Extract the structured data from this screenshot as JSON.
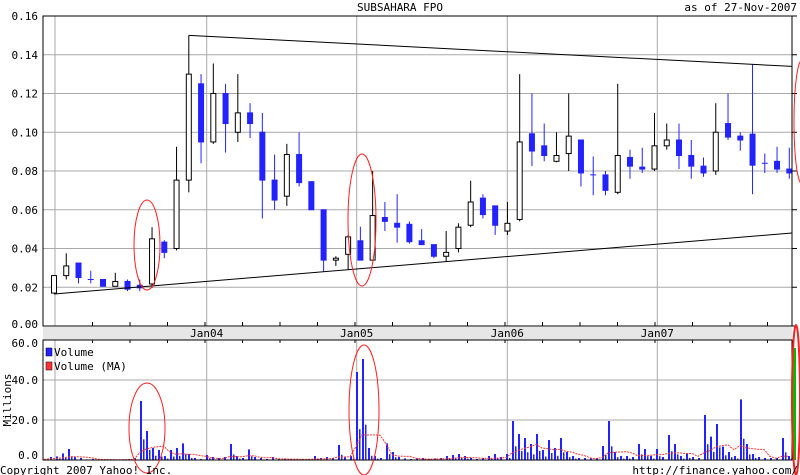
{
  "header": {
    "title": "SUBSAHARA FPO",
    "as_of": "as of 27-Nov-2007"
  },
  "footer": {
    "copyright": "Copyright 2007 Yahoo! Inc.",
    "url": "http://finance.yahoo.com/"
  },
  "colors": {
    "down_candle": "#2323ff",
    "up_candle": "#ffffff",
    "volume": "#2323ff",
    "volume_ma": "#ff3333",
    "annotation": "#ff2020",
    "last_volume_marker": "#00bb00",
    "axis_band": "#e6e6e6",
    "grid": "#a9a9a9"
  },
  "chart_data": [
    {
      "type": "candlestick",
      "title": "SUBSAHARA FPO",
      "period": "monthly",
      "first_period": "2002-11",
      "last_period": "2007-11",
      "ylim": [
        0,
        0.16
      ],
      "y_ticks": [
        "0.00",
        "0.02",
        "0.04",
        "0.06",
        "0.08",
        "0.10",
        "0.12",
        "0.14",
        "0.16"
      ],
      "x_ticks": [
        "Jan04",
        "Jan05",
        "Jan06",
        "Jan07"
      ],
      "grid": true,
      "candles_ohlc": [
        [
          0.017,
          0.026,
          0.017,
          0.026
        ],
        [
          0.026,
          0.0375,
          0.024,
          0.031
        ],
        [
          0.0325,
          0.0325,
          0.022,
          0.025
        ],
        [
          0.024,
          0.0285,
          0.022,
          0.024
        ],
        [
          0.024,
          0.024,
          0.0205,
          0.0205
        ],
        [
          0.0205,
          0.0275,
          0.0205,
          0.023
        ],
        [
          0.023,
          0.024,
          0.018,
          0.019
        ],
        [
          0.021,
          0.024,
          0.018,
          0.0197
        ],
        [
          0.0217,
          0.051,
          0.0197,
          0.045
        ],
        [
          0.0433,
          0.0443,
          0.035,
          0.038
        ],
        [
          0.04,
          0.0925,
          0.039,
          0.0753
        ],
        [
          0.0753,
          0.15,
          0.069,
          0.13
        ],
        [
          0.125,
          0.13,
          0.084,
          0.095
        ],
        [
          0.095,
          0.1355,
          0.094,
          0.12
        ],
        [
          0.12,
          0.125,
          0.0895,
          0.1045
        ],
        [
          0.1,
          0.13,
          0.095,
          0.11
        ],
        [
          0.11,
          0.115,
          0.097,
          0.1045
        ],
        [
          0.1,
          0.11,
          0.0555,
          0.0753
        ],
        [
          0.0753,
          0.0885,
          0.06,
          0.065
        ],
        [
          0.067,
          0.094,
          0.062,
          0.0885
        ],
        [
          0.0885,
          0.1,
          0.072,
          0.074
        ],
        [
          0.0745,
          0.0745,
          0.06,
          0.06
        ],
        [
          0.06,
          0.06,
          0.028,
          0.034
        ],
        [
          0.034,
          0.036,
          0.031,
          0.035
        ],
        [
          0.037,
          0.047,
          0.029,
          0.046
        ],
        [
          0.044,
          0.0513,
          0.034,
          0.034
        ],
        [
          0.034,
          0.08,
          0.034,
          0.057
        ],
        [
          0.056,
          0.064,
          0.049,
          0.054
        ],
        [
          0.053,
          0.068,
          0.043,
          0.051
        ],
        [
          0.0525,
          0.054,
          0.0425,
          0.0435
        ],
        [
          0.044,
          0.05,
          0.042,
          0.042
        ],
        [
          0.042,
          0.042,
          0.035,
          0.036
        ],
        [
          0.036,
          0.049,
          0.033,
          0.038
        ],
        [
          0.04,
          0.053,
          0.038,
          0.051
        ],
        [
          0.052,
          0.075,
          0.051,
          0.064
        ],
        [
          0.066,
          0.068,
          0.0555,
          0.0575
        ],
        [
          0.062,
          0.062,
          0.047,
          0.052
        ],
        [
          0.049,
          0.064,
          0.047,
          0.053
        ],
        [
          0.055,
          0.13,
          0.054,
          0.095
        ],
        [
          0.0992,
          0.12,
          0.0825,
          0.0903
        ],
        [
          0.093,
          0.1045,
          0.085,
          0.088
        ],
        [
          0.085,
          0.1,
          0.0845,
          0.088
        ],
        [
          0.089,
          0.12,
          0.08,
          0.098
        ],
        [
          0.096,
          0.096,
          0.072,
          0.079
        ],
        [
          0.078,
          0.0875,
          0.0675,
          0.078
        ],
        [
          0.078,
          0.08,
          0.0675,
          0.07
        ],
        [
          0.069,
          0.125,
          0.068,
          0.088
        ],
        [
          0.087,
          0.091,
          0.076,
          0.0825
        ],
        [
          0.082,
          0.092,
          0.079,
          0.081
        ],
        [
          0.081,
          0.11,
          0.08,
          0.093
        ],
        [
          0.093,
          0.1045,
          0.091,
          0.096
        ],
        [
          0.096,
          0.1045,
          0.081,
          0.088
        ],
        [
          0.088,
          0.096,
          0.076,
          0.0825
        ],
        [
          0.0825,
          0.087,
          0.077,
          0.079
        ],
        [
          0.08,
          0.115,
          0.078,
          0.1
        ],
        [
          0.1045,
          0.12,
          0.096,
          0.0975
        ],
        [
          0.098,
          0.1,
          0.0905,
          0.096
        ],
        [
          0.099,
          0.135,
          0.068,
          0.083
        ],
        [
          0.084,
          0.089,
          0.079,
          0.084
        ],
        [
          0.085,
          0.0925,
          0.079,
          0.081
        ],
        [
          0.081,
          0.092,
          0.076,
          0.079
        ]
      ],
      "trendlines": [
        {
          "from_candle": 12,
          "from_price": 0.15,
          "to_price_at_end": 0.134
        },
        {
          "from_candle": 1,
          "from_price": 0.0165,
          "to_price_at_end": 0.048
        }
      ]
    },
    {
      "type": "bar",
      "ylabel": "Millions",
      "ylim": [
        0,
        60
      ],
      "y_ticks": [
        "0.0",
        "20.0",
        "40.0",
        "60.0"
      ],
      "legend": [
        "Volume",
        "Volume (MA)"
      ],
      "legend_position": "top-left",
      "volume_millions": [
        0.5,
        1.5,
        1.8,
        3.3,
        5.5,
        1.5,
        1,
        0.3,
        0.5,
        0.2,
        0.2,
        0.3,
        0.2,
        0.3,
        0.5,
        1,
        29.5,
        14.5,
        6,
        5,
        2,
        5,
        6,
        8.3,
        3,
        1,
        0.5,
        2.5,
        1.5,
        1,
        1.5,
        8,
        2,
        1,
        5.3,
        1.5,
        1,
        0.5,
        1.5,
        0.5,
        0.8,
        0.5,
        0.3,
        0.5,
        0.5,
        2,
        1,
        1.5,
        1,
        7.5,
        1.5,
        2,
        44,
        50.5,
        6,
        2,
        1,
        8.3,
        4,
        1.5,
        0.8,
        0.5,
        0.8,
        1,
        0.5,
        0.8,
        1,
        2,
        2.5,
        3,
        2,
        1,
        0.5,
        1,
        2,
        3,
        1.5,
        3,
        19.5,
        13,
        11,
        8,
        13,
        5,
        10,
        6,
        11,
        4,
        2,
        1,
        1,
        0.8,
        1,
        7,
        19.5,
        4,
        2,
        2,
        1.5,
        8,
        5.5,
        2,
        5.5,
        1.5,
        12.5,
        8,
        2,
        3,
        1.5,
        1,
        22.5,
        11.7,
        18,
        6.7,
        4,
        2,
        30.3,
        8,
        3,
        1.5,
        1,
        1,
        1,
        11,
        2
      ],
      "volume_ma_window": 5,
      "last_volume_millions": 56
    }
  ]
}
